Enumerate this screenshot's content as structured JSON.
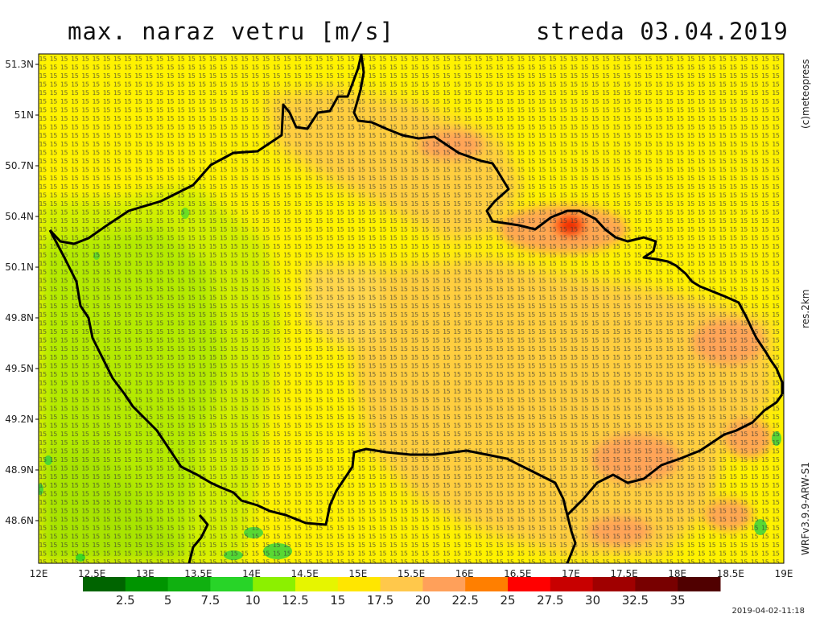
{
  "title": "max. naraz vetru [m/s]",
  "date_label": "streda 03.04.2019",
  "side_labels": {
    "copyright": "(c)meteopress",
    "resolution": "res.2km",
    "model": "WRFv3.9.9-ARW-S1"
  },
  "timestamp": "2019-04-02-11:18",
  "lat_labels": [
    "51.3N",
    "51N",
    "50.7N",
    "50.4N",
    "50.1N",
    "49.8N",
    "49.5N",
    "49.2N",
    "48.9N",
    "48.6N"
  ],
  "lon_labels": [
    "12E",
    "12.5E",
    "13E",
    "13.5E",
    "14E",
    "14.5E",
    "15E",
    "15.5E",
    "16E",
    "16.5E",
    "17E",
    "17.5E",
    "18E",
    "18.5E",
    "19E"
  ],
  "colorbar": {
    "labels": [
      "2.5",
      "5",
      "7.5",
      "10",
      "12.5",
      "15",
      "17.5",
      "20",
      "22.5",
      "25",
      "27.5",
      "30",
      "32.5",
      "35"
    ],
    "colors": [
      "#006400",
      "#009400",
      "#10b010",
      "#28d428",
      "#8cf000",
      "#e6f500",
      "#ffe600",
      "#ffc84b",
      "#ffa05a",
      "#ff7f00",
      "#ff0000",
      "#c80000",
      "#a00000",
      "#780000",
      "#500000"
    ]
  }
}
